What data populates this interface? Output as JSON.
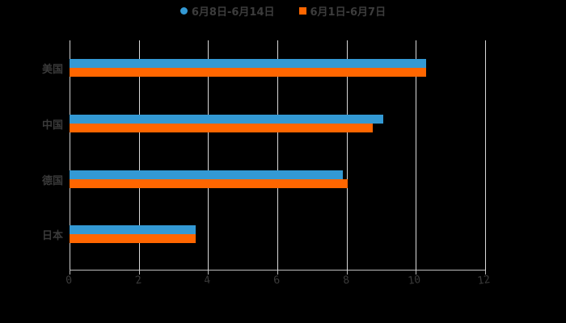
{
  "chart_data": {
    "type": "bar",
    "orientation": "horizontal",
    "title": "",
    "categories": [
      "美国",
      "中国",
      "德国",
      "日本"
    ],
    "series": [
      {
        "name": "6月8日-6月14日",
        "color": "#3399d4",
        "values": [
          10.3,
          9.06,
          7.89,
          3.64
        ]
      },
      {
        "name": "6月1日-6月7日",
        "color": "#ff6600",
        "values": [
          10.3,
          8.76,
          8.03,
          3.64
        ]
      }
    ],
    "xlabel": "",
    "ylabel": "",
    "xlim": [
      0,
      12
    ],
    "xticks": [
      "0",
      "2",
      "4",
      "6",
      "8",
      "10",
      "12"
    ],
    "grid": true,
    "legend_position": "top"
  },
  "legend": {
    "series_0": "6月8日-6月14日",
    "series_1": "6月1日-6月7日"
  }
}
